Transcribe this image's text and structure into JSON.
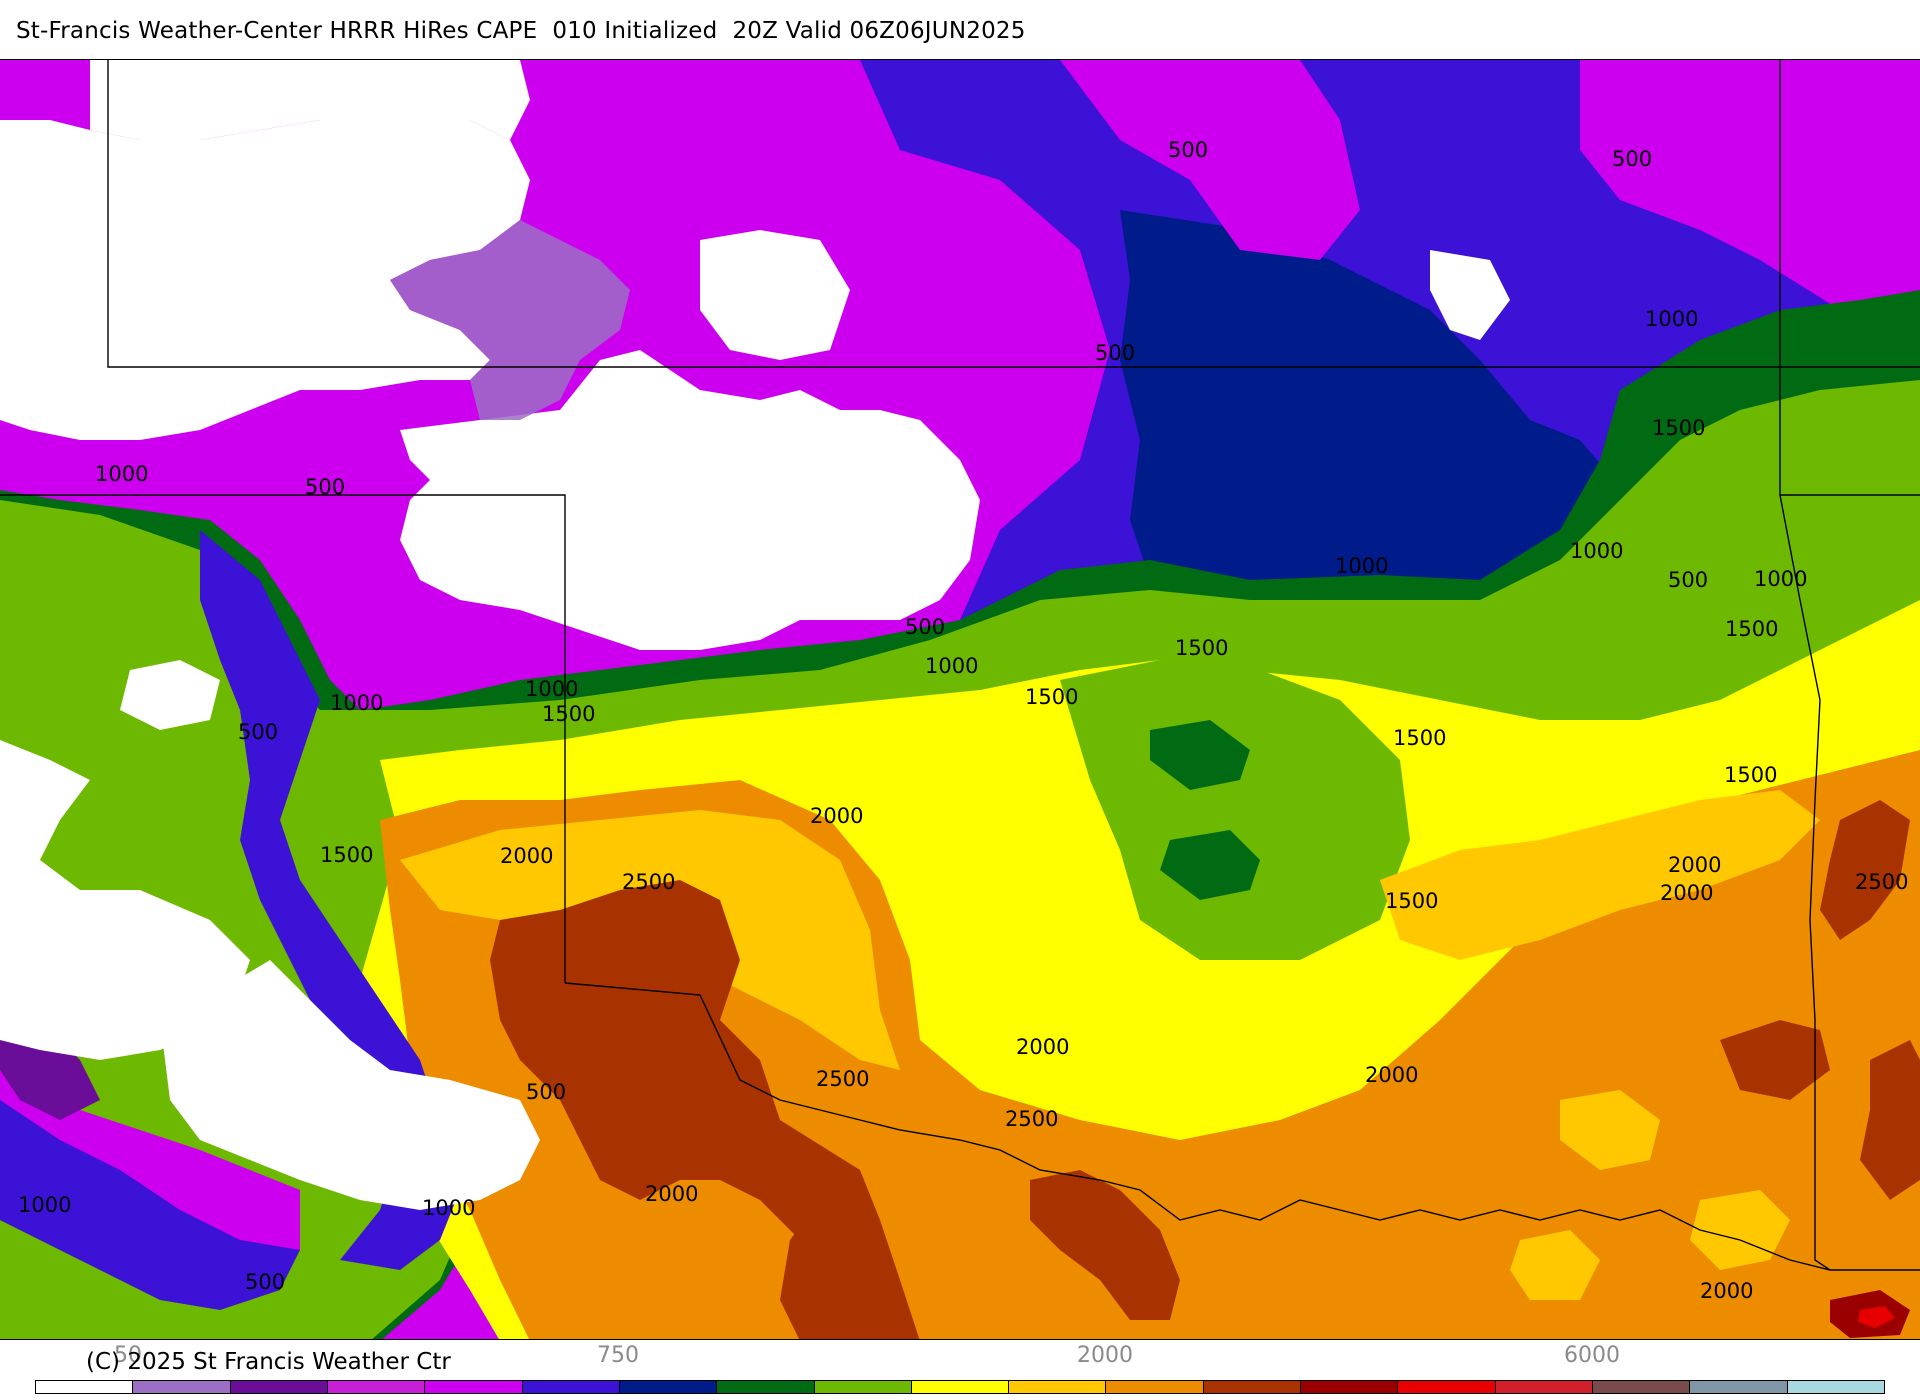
{
  "title": "St-Francis Weather-Center HRRR HiRes CAPE  010 Initialized  20Z Valid 06Z06JUN2025",
  "copyright": "(C) 2025 St Francis Weather Ctr",
  "colorbar": {
    "colors": [
      "#ffffff",
      "#9b6fc4",
      "#6a0d99",
      "#c71fd6",
      "#cc00ee",
      "#3b12d6",
      "#001c8a",
      "#006b12",
      "#6db800",
      "#ffff00",
      "#ffc800",
      "#ee8c00",
      "#a83200",
      "#9a0000",
      "#e80000",
      "#d01e2a",
      "#7a4b4b",
      "#7f96a8",
      "#a8d8e0"
    ],
    "labels": [
      {
        "text": "50"
      },
      {
        "text": "750"
      },
      {
        "text": "2000"
      },
      {
        "text": "6000"
      }
    ]
  },
  "contour_labels": [
    "500",
    "500",
    "500",
    "1000",
    "1500",
    "1000",
    "500",
    "500",
    "1000",
    "1000",
    "1500",
    "1500",
    "500",
    "1000",
    "1000",
    "1000",
    "1500",
    "1500",
    "500",
    "1000",
    "1500",
    "1500",
    "1500",
    "2000",
    "2000",
    "2000",
    "2500",
    "2000",
    "1500",
    "2500",
    "2000",
    "2000",
    "2500",
    "2500",
    "2000",
    "500",
    "1000",
    "1000",
    "500",
    "2000"
  ]
}
